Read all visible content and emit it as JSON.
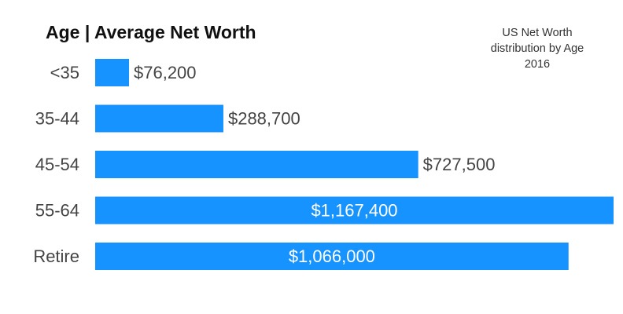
{
  "chart_data": {
    "type": "bar",
    "orientation": "horizontal",
    "title": "Age | Average Net Worth",
    "subtitle_lines": [
      "US Net Worth",
      "distribution by Age",
      "2016"
    ],
    "categories": [
      "<35",
      "35-44",
      "45-54",
      "55-64",
      "Retire"
    ],
    "values": [
      76200,
      288700,
      727500,
      1167400,
      1066000
    ],
    "value_labels": [
      "$76,200",
      "$288,700",
      "$727,500",
      "$1,167,400",
      "$1,066,000"
    ],
    "xlim": [
      0,
      1167400
    ],
    "bar_color": "#1793ff",
    "label_color": "#444444",
    "inside_label_color": "#ffffff",
    "grid": false,
    "legend": "none"
  }
}
